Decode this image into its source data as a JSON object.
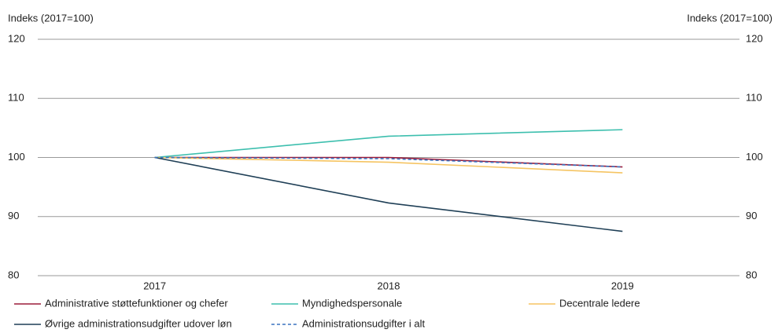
{
  "chart_data": {
    "type": "line",
    "y_label": "Indeks (2017=100)",
    "y2_label": "Indeks (2017=100)",
    "categories": [
      "2017",
      "2018",
      "2019"
    ],
    "series": [
      {
        "name": "Administrative støttefunktioner og chefer",
        "color": "#9b1b3a",
        "values": [
          100,
          100.0,
          98.4
        ]
      },
      {
        "name": "Myndighedspersonale",
        "color": "#3dbfae",
        "values": [
          100,
          103.6,
          104.7
        ]
      },
      {
        "name": "Decentrale ledere",
        "color": "#f5c462",
        "values": [
          100,
          99.2,
          97.4
        ]
      },
      {
        "name": "Øvrige administrationsudgifter udover løn",
        "color": "#1f3f56",
        "values": [
          100,
          92.3,
          87.5
        ]
      },
      {
        "name": "Administrationsudgifter i alt",
        "color": "#3a74c0",
        "dashed": true,
        "values": [
          100,
          99.8,
          98.4
        ]
      }
    ],
    "ylim": [
      80,
      120
    ],
    "yticks": [
      80,
      90,
      100,
      110,
      120
    ],
    "y2lim": [
      80,
      120
    ],
    "y2ticks": [
      80,
      90,
      100,
      110,
      120
    ],
    "grid": true,
    "legend": "bottom"
  }
}
